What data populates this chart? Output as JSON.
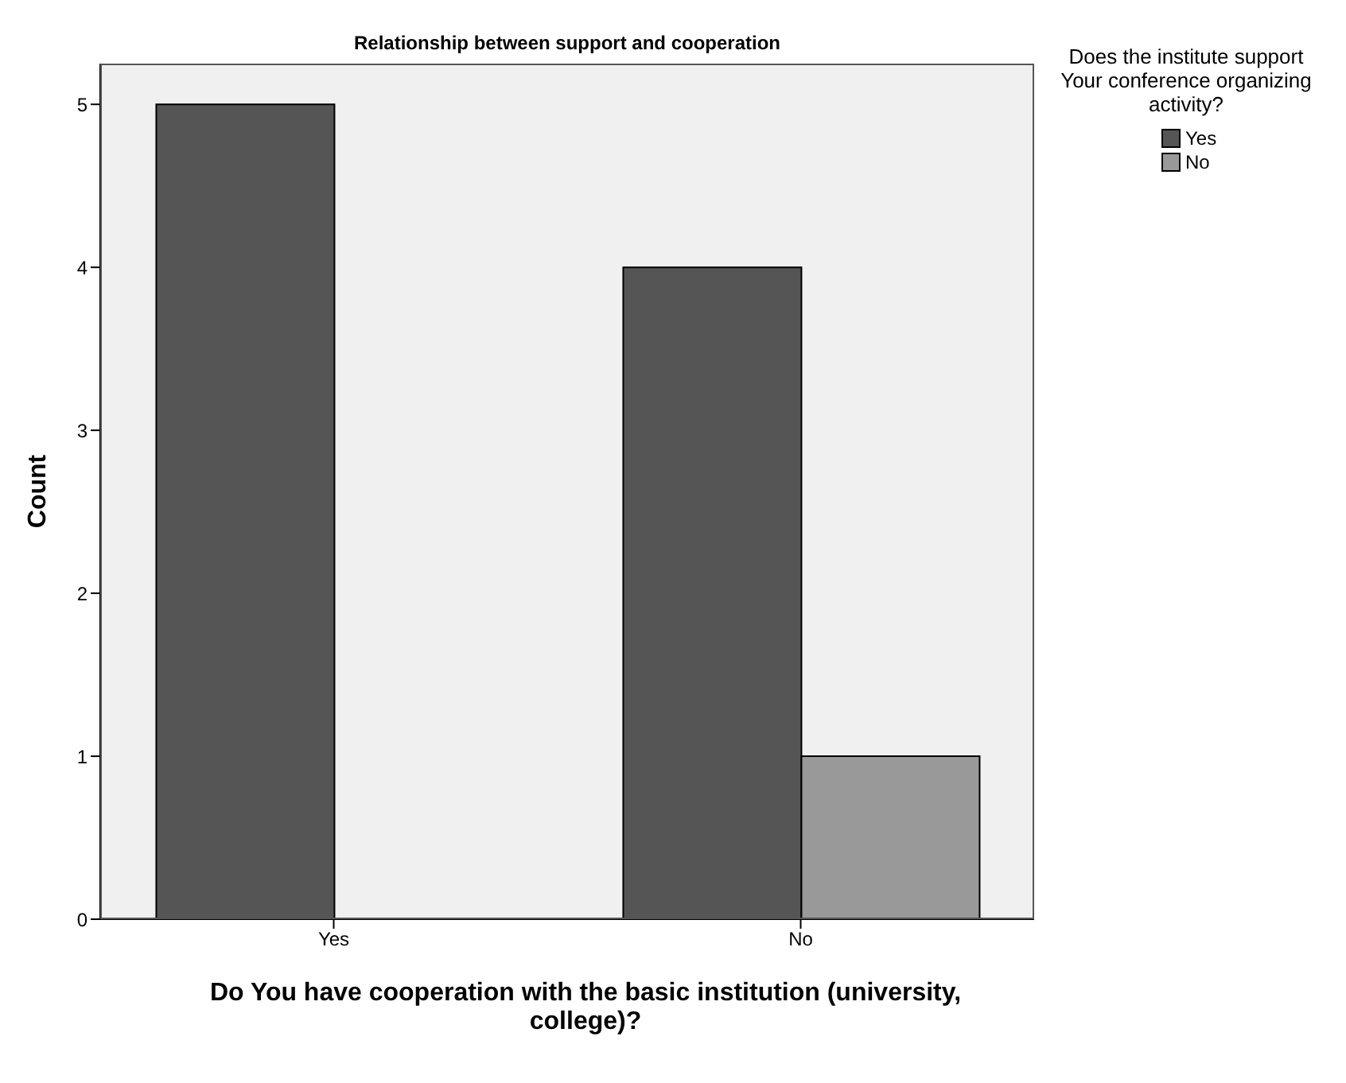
{
  "chart_data": {
    "type": "bar",
    "title": "Relationship between support and cooperation",
    "xlabel": "Do You have cooperation with the basic institution (university, college)?",
    "ylabel": "Count",
    "legend_title": "Does the institute support Your conference organizing activity?",
    "categories": [
      "Yes",
      "No"
    ],
    "series": [
      {
        "name": "Yes",
        "color": "#555555",
        "values": [
          5,
          4
        ]
      },
      {
        "name": "No",
        "color": "#999999",
        "values": [
          0,
          1
        ]
      }
    ],
    "ylim": [
      0,
      5.25
    ],
    "yticks": [
      0,
      1,
      2,
      3,
      4,
      5
    ],
    "grid": false,
    "legend": "top right"
  }
}
